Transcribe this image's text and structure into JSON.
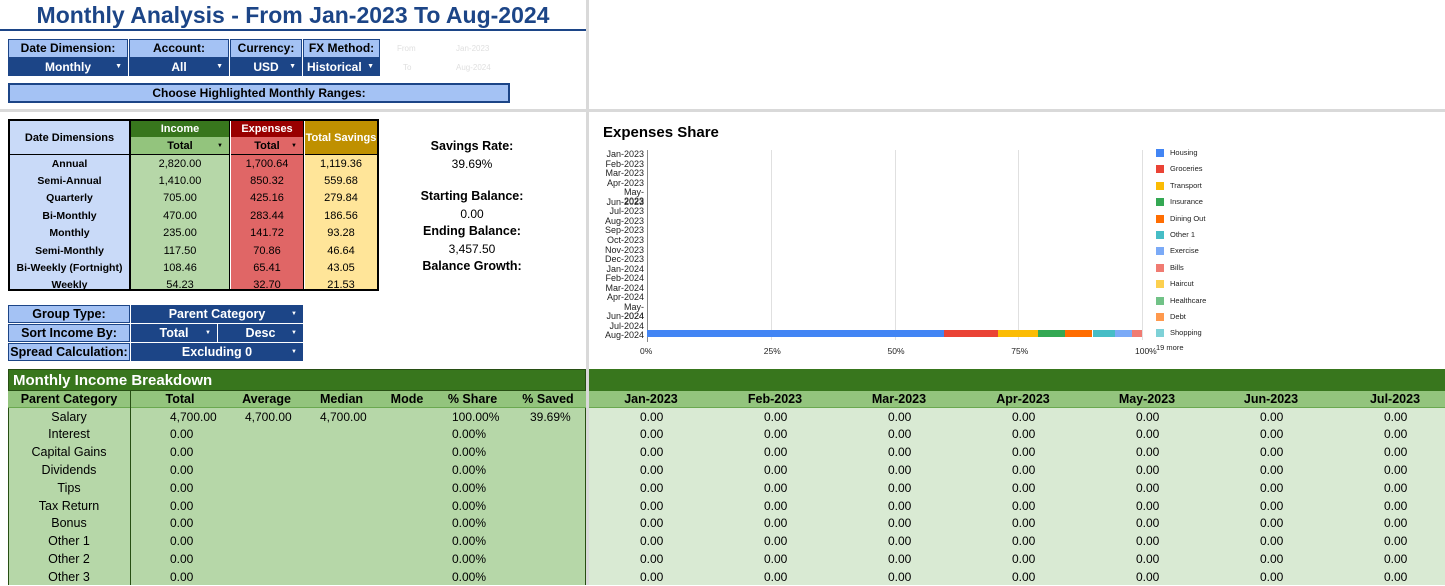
{
  "title": "Monthly Analysis - From Jan-2023 To Aug-2024",
  "controls": [
    {
      "label": "Date Dimension:",
      "value": "Monthly"
    },
    {
      "label": "Account:",
      "value": "All"
    },
    {
      "label": "Currency:",
      "value": "USD"
    },
    {
      "label": "FX Method:",
      "value": "Historical"
    }
  ],
  "ghost": {
    "from_label": "From",
    "from_value": "Jan-2023",
    "to_label": "To",
    "to_value": "Aug-2024"
  },
  "highlight_button": "Choose Highlighted Monthly Ranges:",
  "summary": {
    "dim_header": "Date Dimensions",
    "income_header": "Income",
    "income_filter": "Total",
    "expenses_header": "Expenses",
    "expenses_filter": "Total",
    "savings_header": "Total Savings",
    "rows": [
      {
        "dim": "Annual",
        "income": "2,820.00",
        "expenses": "1,700.64",
        "savings": "1,119.36"
      },
      {
        "dim": "Semi-Annual",
        "income": "1,410.00",
        "expenses": "850.32",
        "savings": "559.68"
      },
      {
        "dim": "Quarterly",
        "income": "705.00",
        "expenses": "425.16",
        "savings": "279.84"
      },
      {
        "dim": "Bi-Monthly",
        "income": "470.00",
        "expenses": "283.44",
        "savings": "186.56"
      },
      {
        "dim": "Monthly",
        "income": "235.00",
        "expenses": "141.72",
        "savings": "93.28"
      },
      {
        "dim": "Semi-Monthly",
        "income": "117.50",
        "expenses": "70.86",
        "savings": "46.64"
      },
      {
        "dim": "Bi-Weekly (Fortnight)",
        "income": "108.46",
        "expenses": "65.41",
        "savings": "43.05"
      },
      {
        "dim": "Weekly",
        "income": "54.23",
        "expenses": "32.70",
        "savings": "21.53"
      }
    ]
  },
  "stats": {
    "savings_rate_label": "Savings Rate:",
    "savings_rate_value": "39.69%",
    "starting_balance_label": "Starting Balance:",
    "starting_balance_value": "0.00",
    "ending_balance_label": "Ending Balance:",
    "ending_balance_value": "3,457.50",
    "balance_growth_label": "Balance Growth:"
  },
  "group": {
    "group_type_label": "Group Type:",
    "group_type_value": "Parent Category",
    "sort_label": "Sort Income By:",
    "sort_field": "Total",
    "sort_order": "Desc",
    "spread_label": "Spread Calculation:",
    "spread_value": "Excluding 0"
  },
  "chart_data": {
    "type": "bar",
    "title": "Expenses Share",
    "categories": [
      "Jan-2023",
      "Feb-2023",
      "Mar-2023",
      "Apr-2023",
      "May-2023",
      "Jun-2023",
      "Jul-2023",
      "Aug-2023",
      "Sep-2023",
      "Oct-2023",
      "Nov-2023",
      "Dec-2023",
      "Jan-2024",
      "Feb-2024",
      "Mar-2024",
      "Apr-2024",
      "May-2024",
      "Jun-2024",
      "Jul-2024",
      "Aug-2024"
    ],
    "xticks": [
      "0%",
      "25%",
      "50%",
      "75%",
      "100%"
    ],
    "xlim": [
      0,
      100
    ],
    "stacked": true,
    "orientation": "horizontal",
    "legend_more": "19 more",
    "legend_position": "right",
    "series": [
      {
        "name": "Housing",
        "color": "#4285f4",
        "values": [
          0,
          0,
          0,
          0,
          0,
          0,
          0,
          0,
          0,
          0,
          0,
          0,
          0,
          0,
          0,
          0,
          0,
          0,
          0,
          60.0
        ]
      },
      {
        "name": "Groceries",
        "color": "#ea4335",
        "values": [
          0,
          0,
          0,
          0,
          0,
          0,
          0,
          0,
          0,
          0,
          0,
          0,
          0,
          0,
          0,
          0,
          0,
          0,
          0,
          11.0
        ]
      },
      {
        "name": "Transport",
        "color": "#fbbc04",
        "values": [
          0,
          0,
          0,
          0,
          0,
          0,
          0,
          0,
          0,
          0,
          0,
          0,
          0,
          0,
          0,
          0,
          0,
          0,
          0,
          8.0
        ]
      },
      {
        "name": "Insurance",
        "color": "#34a853",
        "values": [
          0,
          0,
          0,
          0,
          0,
          0,
          0,
          0,
          0,
          0,
          0,
          0,
          0,
          0,
          0,
          0,
          0,
          0,
          0,
          5.5
        ]
      },
      {
        "name": "Dining Out",
        "color": "#ff6d01",
        "values": [
          0,
          0,
          0,
          0,
          0,
          0,
          0,
          0,
          0,
          0,
          0,
          0,
          0,
          0,
          0,
          0,
          0,
          0,
          0,
          5.5
        ]
      },
      {
        "name": "Other 1",
        "color": "#46bdc6",
        "values": [
          0,
          0,
          0,
          0,
          0,
          0,
          0,
          0,
          0,
          0,
          0,
          0,
          0,
          0,
          0,
          0,
          0,
          0,
          0,
          4.5
        ]
      },
      {
        "name": "Exercise",
        "color": "#7baaf7",
        "values": [
          0,
          0,
          0,
          0,
          0,
          0,
          0,
          0,
          0,
          0,
          0,
          0,
          0,
          0,
          0,
          0,
          0,
          0,
          0,
          3.5
        ]
      },
      {
        "name": "Bills",
        "color": "#f07b72",
        "values": [
          0,
          0,
          0,
          0,
          0,
          0,
          0,
          0,
          0,
          0,
          0,
          0,
          0,
          0,
          0,
          0,
          0,
          0,
          0,
          2.0
        ]
      },
      {
        "name": "Haircut",
        "color": "#fcd04f",
        "values": [
          0,
          0,
          0,
          0,
          0,
          0,
          0,
          0,
          0,
          0,
          0,
          0,
          0,
          0,
          0,
          0,
          0,
          0,
          0,
          0
        ]
      },
      {
        "name": "Healthcare",
        "color": "#71c287",
        "values": [
          0,
          0,
          0,
          0,
          0,
          0,
          0,
          0,
          0,
          0,
          0,
          0,
          0,
          0,
          0,
          0,
          0,
          0,
          0,
          0
        ]
      },
      {
        "name": "Debt",
        "color": "#ff994d",
        "values": [
          0,
          0,
          0,
          0,
          0,
          0,
          0,
          0,
          0,
          0,
          0,
          0,
          0,
          0,
          0,
          0,
          0,
          0,
          0,
          0
        ]
      },
      {
        "name": "Shopping",
        "color": "#7ed1d7",
        "values": [
          0,
          0,
          0,
          0,
          0,
          0,
          0,
          0,
          0,
          0,
          0,
          0,
          0,
          0,
          0,
          0,
          0,
          0,
          0,
          0
        ]
      }
    ]
  },
  "income": {
    "title": "Monthly Income Breakdown",
    "headers": [
      "Parent Category",
      "Total",
      "Average",
      "Median",
      "Mode",
      "% Share",
      "% Saved"
    ],
    "month_headers": [
      "Jan-2023",
      "Feb-2023",
      "Mar-2023",
      "Apr-2023",
      "May-2023",
      "Jun-2023",
      "Jul-2023"
    ],
    "rows": [
      {
        "cat": "Salary",
        "total": "4,700.00",
        "avg": "4,700.00",
        "median": "4,700.00",
        "mode": "",
        "share": "100.00%",
        "saved": "39.69%",
        "months": [
          "0.00",
          "0.00",
          "0.00",
          "0.00",
          "0.00",
          "0.00",
          "0.00"
        ]
      },
      {
        "cat": "Interest",
        "total": "0.00",
        "avg": "",
        "median": "",
        "mode": "",
        "share": "0.00%",
        "saved": "",
        "months": [
          "0.00",
          "0.00",
          "0.00",
          "0.00",
          "0.00",
          "0.00",
          "0.00"
        ]
      },
      {
        "cat": "Capital Gains",
        "total": "0.00",
        "avg": "",
        "median": "",
        "mode": "",
        "share": "0.00%",
        "saved": "",
        "months": [
          "0.00",
          "0.00",
          "0.00",
          "0.00",
          "0.00",
          "0.00",
          "0.00"
        ]
      },
      {
        "cat": "Dividends",
        "total": "0.00",
        "avg": "",
        "median": "",
        "mode": "",
        "share": "0.00%",
        "saved": "",
        "months": [
          "0.00",
          "0.00",
          "0.00",
          "0.00",
          "0.00",
          "0.00",
          "0.00"
        ]
      },
      {
        "cat": "Tips",
        "total": "0.00",
        "avg": "",
        "median": "",
        "mode": "",
        "share": "0.00%",
        "saved": "",
        "months": [
          "0.00",
          "0.00",
          "0.00",
          "0.00",
          "0.00",
          "0.00",
          "0.00"
        ]
      },
      {
        "cat": "Tax Return",
        "total": "0.00",
        "avg": "",
        "median": "",
        "mode": "",
        "share": "0.00%",
        "saved": "",
        "months": [
          "0.00",
          "0.00",
          "0.00",
          "0.00",
          "0.00",
          "0.00",
          "0.00"
        ]
      },
      {
        "cat": "Bonus",
        "total": "0.00",
        "avg": "",
        "median": "",
        "mode": "",
        "share": "0.00%",
        "saved": "",
        "months": [
          "0.00",
          "0.00",
          "0.00",
          "0.00",
          "0.00",
          "0.00",
          "0.00"
        ]
      },
      {
        "cat": "Other 1",
        "total": "0.00",
        "avg": "",
        "median": "",
        "mode": "",
        "share": "0.00%",
        "saved": "",
        "months": [
          "0.00",
          "0.00",
          "0.00",
          "0.00",
          "0.00",
          "0.00",
          "0.00"
        ]
      },
      {
        "cat": "Other 2",
        "total": "0.00",
        "avg": "",
        "median": "",
        "mode": "",
        "share": "0.00%",
        "saved": "",
        "months": [
          "0.00",
          "0.00",
          "0.00",
          "0.00",
          "0.00",
          "0.00",
          "0.00"
        ]
      },
      {
        "cat": "Other 3",
        "total": "0.00",
        "avg": "",
        "median": "",
        "mode": "",
        "share": "0.00%",
        "saved": "",
        "months": [
          "0.00",
          "0.00",
          "0.00",
          "0.00",
          "0.00",
          "0.00",
          "0.00"
        ]
      }
    ]
  },
  "colors": {
    "navy": "#1c4587",
    "light_blue": "#a4c2f4",
    "income_green": "#38761d",
    "income_light": "#b6d7a8",
    "expense_red": "#990000",
    "expense_light": "#ea9999",
    "savings_gold": "#bf9000",
    "savings_light": "#ffe599"
  }
}
